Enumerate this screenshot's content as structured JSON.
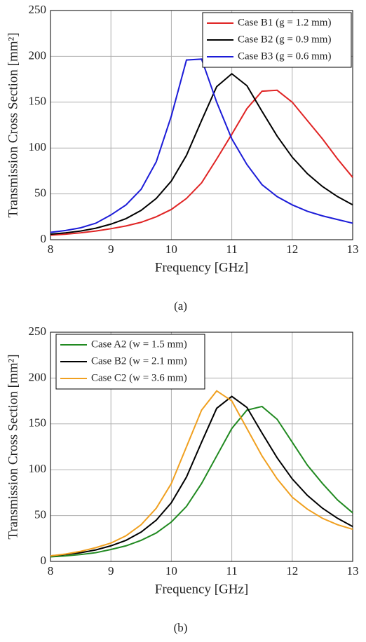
{
  "chart_data": [
    {
      "type": "line",
      "xlabel": "Frequency [GHz]",
      "ylabel": "Transmission Cross Section [mm²]",
      "caption": "(a)",
      "x": [
        8,
        8.25,
        8.5,
        8.75,
        9,
        9.25,
        9.5,
        9.75,
        10,
        10.25,
        10.5,
        10.75,
        11,
        11.25,
        11.5,
        11.75,
        12,
        12.25,
        12.5,
        12.75,
        13
      ],
      "series": [
        {
          "name": "Case B1 (g = 1.2 mm)",
          "color": "#e02424",
          "values": [
            5,
            6,
            7.5,
            9.5,
            12,
            15,
            19,
            25,
            33,
            45,
            62,
            88,
            115,
            143,
            162,
            163,
            150,
            130,
            110,
            88,
            68
          ]
        },
        {
          "name": "Case B2 (g = 0.9 mm)",
          "color": "#000000",
          "values": [
            6,
            7.5,
            9.5,
            12.5,
            17,
            23,
            32,
            45,
            64,
            92,
            130,
            167,
            181,
            168,
            140,
            113,
            90,
            72,
            58,
            47,
            38
          ]
        },
        {
          "name": "Case B3 (g = 0.6 mm)",
          "color": "#1c1cd8",
          "values": [
            8,
            10,
            13,
            18,
            27,
            38,
            55,
            85,
            135,
            196,
            197,
            150,
            110,
            82,
            60,
            47,
            38,
            31,
            26,
            22,
            18
          ]
        }
      ],
      "xlim": [
        8,
        13
      ],
      "xticks": [
        8,
        9,
        10,
        11,
        12,
        13
      ],
      "ylim": [
        0,
        250
      ],
      "yticks": [
        0,
        50,
        100,
        150,
        200,
        250
      ],
      "grid": true,
      "legend": "upper right"
    },
    {
      "type": "line",
      "xlabel": "Frequency [GHz]",
      "ylabel": "Transmission Cross Section [mm²]",
      "caption": "(b)",
      "x": [
        8,
        8.25,
        8.5,
        8.75,
        9,
        9.25,
        9.5,
        9.75,
        10,
        10.25,
        10.5,
        10.75,
        11,
        11.25,
        11.5,
        11.75,
        12,
        12.25,
        12.5,
        12.75,
        13
      ],
      "series": [
        {
          "name": "Case A2 (w = 1.5 mm)",
          "color": "#218a21",
          "values": [
            5,
            6,
            7.5,
            9.5,
            13,
            17,
            23,
            31,
            43,
            60,
            85,
            115,
            145,
            165,
            169,
            155,
            130,
            105,
            85,
            67,
            53
          ]
        },
        {
          "name": "Case B2 (w = 2.1 mm)",
          "color": "#000000",
          "values": [
            6,
            7.5,
            9.5,
            12.5,
            17,
            23,
            32,
            45,
            64,
            92,
            130,
            167,
            180,
            168,
            140,
            113,
            90,
            72,
            58,
            47,
            38
          ]
        },
        {
          "name": "Case C2 (w = 3.6 mm)",
          "color": "#f0a020",
          "values": [
            6,
            8,
            11,
            15,
            20,
            28,
            40,
            58,
            85,
            125,
            165,
            186,
            175,
            145,
            115,
            90,
            70,
            57,
            47,
            40,
            35
          ]
        }
      ],
      "xlim": [
        8,
        13
      ],
      "xticks": [
        8,
        9,
        10,
        11,
        12,
        13
      ],
      "ylim": [
        0,
        250
      ],
      "yticks": [
        0,
        50,
        100,
        150,
        200,
        250
      ],
      "grid": true,
      "legend": "upper left"
    }
  ]
}
